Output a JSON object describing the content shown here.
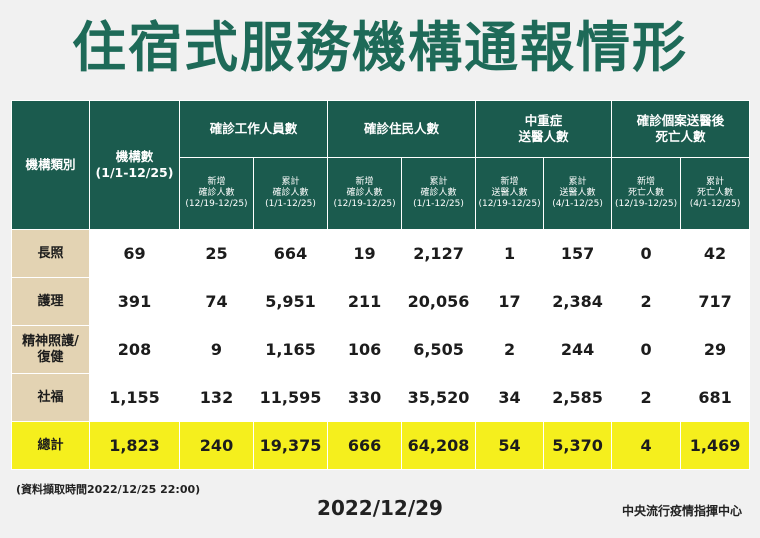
{
  "title": "住宿式服務機構通報情形",
  "header": {
    "category": "機構類別",
    "institutions": "機構數\n(1/1-12/25)",
    "staff": "確診工作人員數",
    "residents": "確診住民人數",
    "severe": "中重症\n送醫人數",
    "deaths": "確診個案送醫後\n死亡人數",
    "staff_new": "新增\n確診人數\n(12/19-12/25)",
    "staff_cum": "累計\n確診人數\n(1/1-12/25)",
    "res_new": "新增\n確診人數\n(12/19-12/25)",
    "res_cum": "累計\n確診人數\n(1/1-12/25)",
    "sev_new": "新增\n送醫人數\n(12/19-12/25)",
    "sev_cum": "累計\n送醫人數\n(4/1-12/25)",
    "death_new": "新增\n死亡人數\n(12/19-12/25)",
    "death_cum": "累計\n死亡人數\n(4/1-12/25)"
  },
  "rows": [
    {
      "label": "長照",
      "cells": [
        "69",
        "25",
        "664",
        "19",
        "2,127",
        "1",
        "157",
        "0",
        "42"
      ]
    },
    {
      "label": "護理",
      "cells": [
        "391",
        "74",
        "5,951",
        "211",
        "20,056",
        "17",
        "2,384",
        "2",
        "717"
      ]
    },
    {
      "label": "精神照護/\n復健",
      "cells": [
        "208",
        "9",
        "1,165",
        "106",
        "6,505",
        "2",
        "244",
        "0",
        "29"
      ]
    },
    {
      "label": "社福",
      "cells": [
        "1,155",
        "132",
        "11,595",
        "330",
        "35,520",
        "34",
        "2,585",
        "2",
        "681"
      ]
    }
  ],
  "total": {
    "label": "總計",
    "cells": [
      "1,823",
      "240",
      "19,375",
      "666",
      "64,208",
      "54",
      "5,370",
      "4",
      "1,469"
    ]
  },
  "footer": {
    "note": "(資料擷取時間2022/12/25  22:00)",
    "date": "2022/12/29",
    "org": "中央流行疫情指揮中心"
  }
}
